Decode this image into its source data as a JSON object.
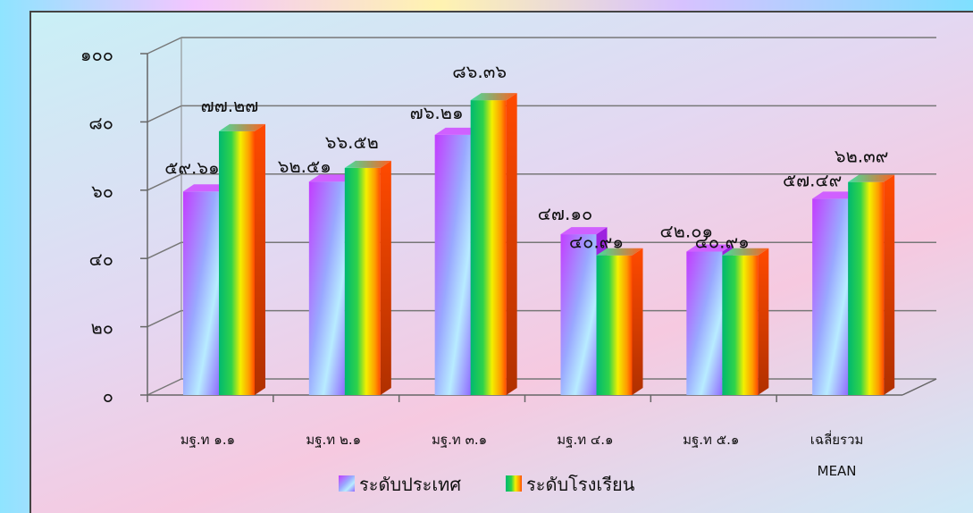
{
  "chart_data": {
    "type": "bar",
    "categories": [
      "มฐ.ท ๑.๑",
      "มฐ.ท ๒.๑",
      "มฐ.ท ๓.๑",
      "มฐ.ท ๔.๑",
      "มฐ.ท ๕.๑",
      "เฉลี่ยรวม"
    ],
    "category_sublabels": [
      "",
      "",
      "",
      "",
      "",
      "MEAN"
    ],
    "series": [
      {
        "name": "ระดับประเทศ",
        "values": [
          59.61,
          62.51,
          76.21,
          47.1,
          42.01,
          57.49
        ],
        "labels": [
          "๕๙.๖๑",
          "๖๒.๕๑",
          "๗๖.๒๑",
          "๔๗.๑๐",
          "๔๒.๐๑",
          "๕๗.๔๙"
        ],
        "color": "#c05cff"
      },
      {
        "name": "ระดับโรงเรียน",
        "values": [
          77.27,
          66.52,
          86.36,
          40.91,
          40.91,
          62.39
        ],
        "labels": [
          "๗๗.๒๗",
          "๖๖.๕๒",
          "๘๖.๓๖",
          "๔๐.๙๑",
          "๔๐.๙๑",
          "๖๒.๓๙"
        ],
        "color": "#22c070"
      }
    ],
    "ylim": [
      0,
      100
    ],
    "yticks": [
      0,
      20,
      40,
      60,
      80,
      100
    ],
    "ytick_labels": [
      "๐",
      "๒๐",
      "๔๐",
      "๖๐",
      "๘๐",
      "๑๐๐"
    ],
    "grid": true,
    "legend_position": "bottom",
    "title": "",
    "xlabel": "",
    "ylabel": ""
  }
}
